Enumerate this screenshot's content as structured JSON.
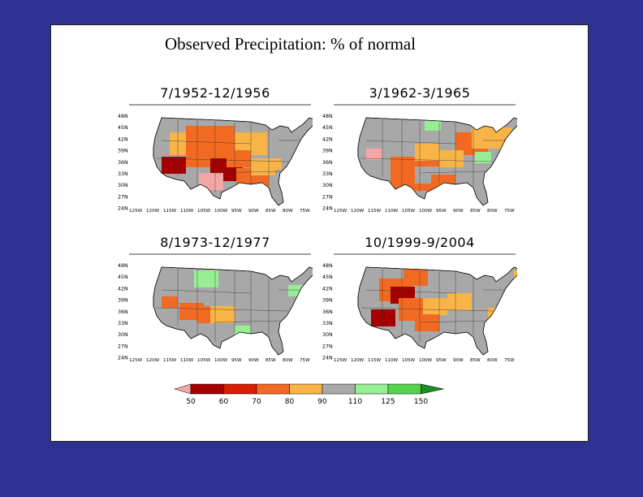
{
  "title": "Observed Precipitation: % of normal",
  "panels": [
    {
      "period": "7/1952-12/1956"
    },
    {
      "period": "3/1962-3/1965"
    },
    {
      "period": "8/1973-12/1977"
    },
    {
      "period": "10/1999-9/2004"
    }
  ],
  "lat_labels": [
    "48N",
    "45N",
    "42N",
    "39N",
    "36N",
    "33N",
    "30N",
    "27N",
    "24N"
  ],
  "lon_labels": [
    "125W",
    "120W",
    "115W",
    "110W",
    "105W",
    "100W",
    "95W",
    "90W",
    "85W",
    "80W",
    "75W"
  ],
  "colorbar": {
    "ticks": [
      "50",
      "60",
      "70",
      "80",
      "90",
      "110",
      "125",
      "150"
    ],
    "colors": [
      "#f4a6a6",
      "#a50000",
      "#d71e06",
      "#f26a22",
      "#f8b446",
      "#a8a8a8",
      "#98ee94",
      "#56d44d",
      "#1b8e26"
    ]
  },
  "palette": {
    "background": "#2e3192",
    "land_gray": "#a8a8a8"
  }
}
